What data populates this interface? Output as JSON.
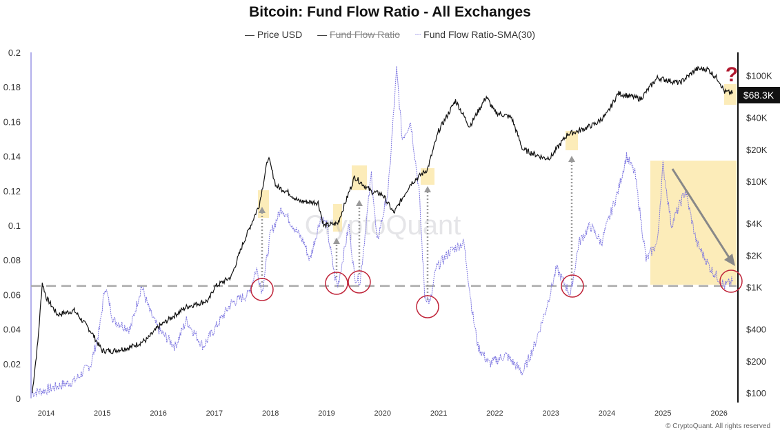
{
  "chart_data": {
    "type": "line",
    "title": "Bitcoin: Fund Flow Ratio - All Exchanges",
    "legend": {
      "placement": "top",
      "entries": [
        "Price USD",
        "Fund Flow Ratio",
        "Fund Flow Ratio-SMA(30)"
      ],
      "hidden": [
        "Fund Flow Ratio"
      ]
    },
    "x_ticks": [
      "2014",
      "2015",
      "2016",
      "2017",
      "2018",
      "2019",
      "2020",
      "2021",
      "2022",
      "2023",
      "2024",
      "2025",
      "2026"
    ],
    "y_left": {
      "ticks": [
        "0",
        "0.02",
        "0.04",
        "0.06",
        "0.08",
        "0.1",
        "0.12",
        "0.14",
        "0.16",
        "0.18",
        "0.2"
      ],
      "range": [
        0,
        0.2
      ]
    },
    "y_right": {
      "scale": "log",
      "ticks": [
        "$100",
        "$200",
        "$400",
        "$1K",
        "$2K",
        "$4K",
        "$10K",
        "$20K",
        "$40K",
        "$100K"
      ],
      "range": [
        100,
        140000
      ]
    },
    "current_price_label": "$68.3K",
    "grid": false,
    "series": [
      {
        "name": "Price USD",
        "axis": "right",
        "color": "#111111",
        "points": [
          [
            2013.75,
            100
          ],
          [
            2013.85,
            300
          ],
          [
            2013.93,
            1100
          ],
          [
            2014.0,
            800
          ],
          [
            2014.2,
            550
          ],
          [
            2014.5,
            600
          ],
          [
            2014.8,
            380
          ],
          [
            2015.0,
            250
          ],
          [
            2015.2,
            250
          ],
          [
            2015.5,
            270
          ],
          [
            2015.8,
            320
          ],
          [
            2016.0,
            420
          ],
          [
            2016.5,
            650
          ],
          [
            2016.9,
            750
          ],
          [
            2017.0,
            1000
          ],
          [
            2017.3,
            1250
          ],
          [
            2017.5,
            2500
          ],
          [
            2017.8,
            6000
          ],
          [
            2017.96,
            17000
          ],
          [
            2018.1,
            9000
          ],
          [
            2018.3,
            8000
          ],
          [
            2018.5,
            6500
          ],
          [
            2018.85,
            6300
          ],
          [
            2018.95,
            3800
          ],
          [
            2019.2,
            4000
          ],
          [
            2019.5,
            11000
          ],
          [
            2019.8,
            8000
          ],
          [
            2020.0,
            7500
          ],
          [
            2020.2,
            5000
          ],
          [
            2020.5,
            9500
          ],
          [
            2020.8,
            13000
          ],
          [
            2021.0,
            30000
          ],
          [
            2021.3,
            58000
          ],
          [
            2021.55,
            33000
          ],
          [
            2021.85,
            63000
          ],
          [
            2022.0,
            45000
          ],
          [
            2022.3,
            40000
          ],
          [
            2022.5,
            20000
          ],
          [
            2022.9,
            16500
          ],
          [
            2023.0,
            17000
          ],
          [
            2023.3,
            28000
          ],
          [
            2023.5,
            30000
          ],
          [
            2023.8,
            35000
          ],
          [
            2024.0,
            43000
          ],
          [
            2024.2,
            68000
          ],
          [
            2024.6,
            60000
          ],
          [
            2024.9,
            95000
          ],
          [
            2025.3,
            85000
          ],
          [
            2025.6,
            115000
          ],
          [
            2025.8,
            115000
          ],
          [
            2026.0,
            90000
          ],
          [
            2026.1,
            70000
          ],
          [
            2026.25,
            68300
          ]
        ]
      },
      {
        "name": "Fund Flow Ratio-SMA(30)",
        "axis": "left",
        "color": "#7b74e0",
        "points": [
          [
            2013.75,
            0.003
          ],
          [
            2014.0,
            0.005
          ],
          [
            2014.5,
            0.01
          ],
          [
            2014.8,
            0.02
          ],
          [
            2014.95,
            0.04
          ],
          [
            2015.05,
            0.065
          ],
          [
            2015.2,
            0.045
          ],
          [
            2015.5,
            0.04
          ],
          [
            2015.7,
            0.065
          ],
          [
            2015.85,
            0.05
          ],
          [
            2016.0,
            0.04
          ],
          [
            2016.3,
            0.03
          ],
          [
            2016.5,
            0.045
          ],
          [
            2016.8,
            0.03
          ],
          [
            2017.0,
            0.04
          ],
          [
            2017.3,
            0.055
          ],
          [
            2017.6,
            0.06
          ],
          [
            2017.75,
            0.075
          ],
          [
            2017.85,
            0.062
          ],
          [
            2018.0,
            0.095
          ],
          [
            2018.2,
            0.11
          ],
          [
            2018.4,
            0.1
          ],
          [
            2018.6,
            0.09
          ],
          [
            2018.7,
            0.08
          ],
          [
            2018.9,
            0.105
          ],
          [
            2019.0,
            0.1
          ],
          [
            2019.15,
            0.07
          ],
          [
            2019.2,
            0.065
          ],
          [
            2019.4,
            0.1
          ],
          [
            2019.5,
            0.07
          ],
          [
            2019.6,
            0.068
          ],
          [
            2019.8,
            0.13
          ],
          [
            2019.9,
            0.09
          ],
          [
            2020.1,
            0.12
          ],
          [
            2020.25,
            0.19
          ],
          [
            2020.35,
            0.15
          ],
          [
            2020.5,
            0.16
          ],
          [
            2020.65,
            0.12
          ],
          [
            2020.75,
            0.06
          ],
          [
            2020.85,
            0.055
          ],
          [
            2020.95,
            0.075
          ],
          [
            2021.2,
            0.085
          ],
          [
            2021.45,
            0.09
          ],
          [
            2021.6,
            0.05
          ],
          [
            2021.7,
            0.03
          ],
          [
            2021.9,
            0.02
          ],
          [
            2022.2,
            0.025
          ],
          [
            2022.5,
            0.015
          ],
          [
            2022.7,
            0.03
          ],
          [
            2022.9,
            0.05
          ],
          [
            2023.1,
            0.075
          ],
          [
            2023.35,
            0.06
          ],
          [
            2023.5,
            0.09
          ],
          [
            2023.7,
            0.1
          ],
          [
            2023.9,
            0.09
          ],
          [
            2024.2,
            0.12
          ],
          [
            2024.35,
            0.14
          ],
          [
            2024.5,
            0.13
          ],
          [
            2024.7,
            0.08
          ],
          [
            2024.9,
            0.09
          ],
          [
            2025.0,
            0.135
          ],
          [
            2025.15,
            0.1
          ],
          [
            2025.4,
            0.12
          ],
          [
            2025.6,
            0.09
          ],
          [
            2025.85,
            0.075
          ],
          [
            2026.1,
            0.065
          ],
          [
            2026.25,
            0.068
          ]
        ]
      }
    ],
    "annotations": {
      "support_level": 0.065,
      "question_mark": "?",
      "watermark": "CryptoQuant"
    }
  },
  "footer": "© CryptoQuant. All rights reserved"
}
